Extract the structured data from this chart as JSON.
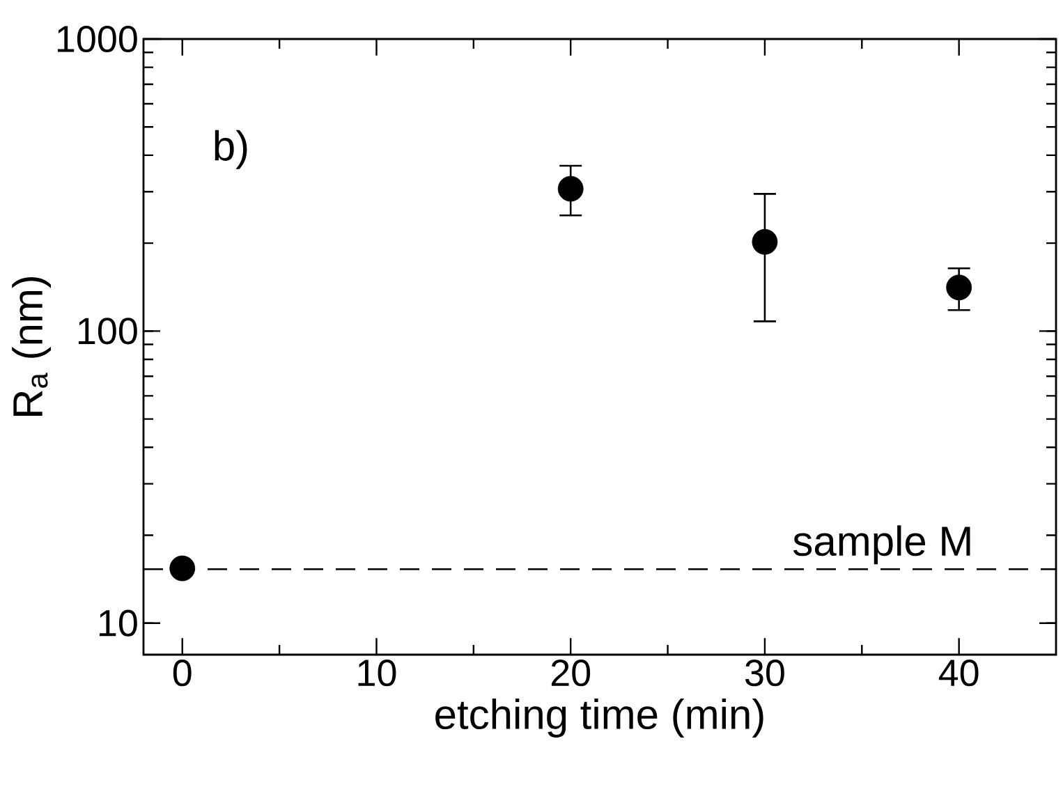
{
  "chart_data": {
    "type": "scatter",
    "xlabel": "etching time (min)",
    "ylabel": "R$_{a}$ (nm)",
    "annotations": [
      "b)"
    ],
    "x": [
      0,
      20,
      30,
      40
    ],
    "series": [
      {
        "color": "#000000",
        "values": [
          15.4,
          307,
          202,
          141
        ],
        "errors": [
          null,
          [
            249,
            368
          ],
          [
            108,
            295
          ],
          [
            118,
            164
          ]
        ]
      }
    ],
    "marker": "circle",
    "log": "y",
    "xlim": [
      -2,
      45
    ],
    "ylim": [
      7.8,
      1000
    ],
    "xticks": [
      0,
      10,
      20,
      30,
      40
    ],
    "yticks": [
      10,
      100,
      1000
    ],
    "ref_lines": [
      {
        "axis": "y",
        "value": 15.3,
        "label": "sample M",
        "line_style": "dashed",
        "color": "#000000"
      }
    ]
  }
}
